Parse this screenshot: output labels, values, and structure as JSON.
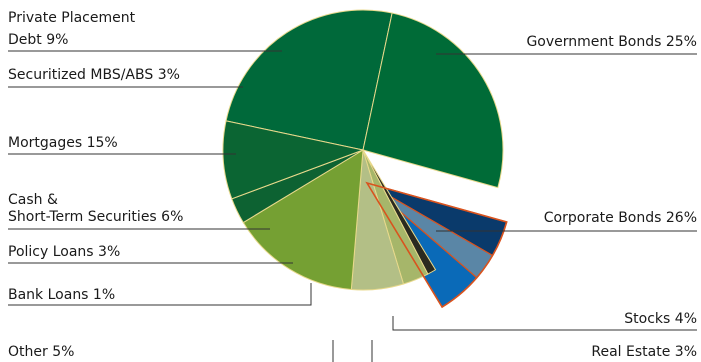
{
  "chart_data": {
    "type": "pie",
    "title": "",
    "slices": [
      {
        "name": "Government Bonds",
        "label": "Government Bonds  25%",
        "value": 25,
        "color": "#00693a"
      },
      {
        "name": "Corporate Bonds",
        "label": "Corporate Bonds  26%",
        "value": 26,
        "color": "#006b37"
      },
      {
        "name": "Stocks",
        "label": "Stocks  4%",
        "value": 4,
        "color": "#0a3a6b",
        "exploded": true
      },
      {
        "name": "Real Estate",
        "label": "Real Estate  3%",
        "value": 3,
        "color": "#5a86a6",
        "exploded": true
      },
      {
        "name": "Other",
        "label": "Other  5%",
        "value": 5,
        "color": "#0a6ab8",
        "exploded": true
      },
      {
        "name": "Bank Loans",
        "label": "Bank Loans  1%",
        "value": 1,
        "color": "#2a2a20"
      },
      {
        "name": "Policy Loans",
        "label": "Policy Loans  3%",
        "value": 3,
        "color": "#a6b66a"
      },
      {
        "name": "Cash & Short-Term Securities",
        "label_lines": [
          "Cash &",
          "Short-Term Securities  6%"
        ],
        "value": 6,
        "color": "#b3bf86"
      },
      {
        "name": "Mortgages",
        "label": "Mortgages  15%",
        "value": 15,
        "color": "#75a033"
      },
      {
        "name": "Securitized MBS/ABS",
        "label": "Securitized MBS/ABS  3%",
        "value": 3,
        "color": "#0d6232"
      },
      {
        "name": "Private Placement Debt",
        "label_lines": [
          "Private Placement",
          "Debt  9%"
        ],
        "value": 9,
        "color": "#0b6533"
      }
    ],
    "legend": "none",
    "unit": "%",
    "colors": {
      "slice_border": "#e8d98c",
      "exploded_border": "#d9531e",
      "leader_line": "#333333"
    }
  }
}
